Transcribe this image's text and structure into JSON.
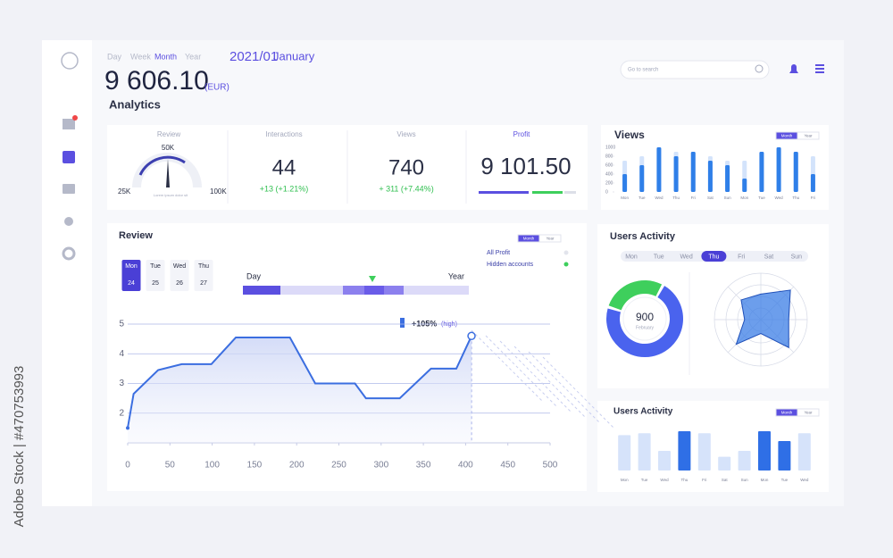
{
  "watermark": "Adobe Stock | #470753993",
  "header": {
    "periods": [
      "Day",
      "Week",
      "Month",
      "Year"
    ],
    "active_period": "Month",
    "date": "2021/01",
    "month": "January",
    "balance": "9 606.10",
    "currency": "(EUR)",
    "section": "Analytics",
    "search_placeholder": "Go to search"
  },
  "kpis": {
    "review": {
      "label": "Review",
      "gauge_labels": [
        "25K",
        "50K",
        "100K"
      ],
      "note": "Lorem ipsum dolor sit"
    },
    "interactions": {
      "label": "Interactions",
      "value": "44",
      "change": "+13 (+1.21%)"
    },
    "views": {
      "label": "Views",
      "value": "740",
      "change": "+ 311 (+7.44%)"
    },
    "profit": {
      "label": "Profit",
      "value": "9 101.50"
    }
  },
  "views_chart": {
    "type": "bar",
    "title": "Views",
    "toggle": [
      "Month",
      "Year"
    ],
    "categories": [
      "Mon",
      "Tue",
      "Wed",
      "Thu",
      "Fri",
      "Sat",
      "Sun",
      "Mon",
      "Tue",
      "Wed",
      "Thu",
      "Fri"
    ],
    "values": [
      400,
      600,
      1000,
      800,
      900,
      700,
      600,
      300,
      900,
      1000,
      900,
      400
    ],
    "background_values": [
      700,
      800,
      1000,
      900,
      900,
      800,
      700,
      700,
      900,
      1000,
      900,
      800
    ],
    "color": "#2f7fe8",
    "background_color": "#d3e3fb",
    "ylim": [
      0,
      1000
    ],
    "yticks": [
      0,
      200,
      400,
      600,
      800,
      1000
    ]
  },
  "review_chart": {
    "type": "line",
    "title": "Review",
    "toggle": [
      "Month",
      "Year"
    ],
    "dates": [
      {
        "day": "Mon",
        "num": "24"
      },
      {
        "day": "Tue",
        "num": "25"
      },
      {
        "day": "Wed",
        "num": "26"
      },
      {
        "day": "Thu",
        "num": "27"
      }
    ],
    "active_date": 0,
    "slider": {
      "start": "Day",
      "end": "Year"
    },
    "legend": [
      "All Profit",
      "Hidden accounts"
    ],
    "annotation": {
      "value": "+105%",
      "note": "(high)"
    },
    "x": [
      0,
      7,
      36,
      64,
      99,
      128,
      192,
      222,
      269,
      282,
      322,
      359,
      389,
      407
    ],
    "values": [
      1.5,
      2.65,
      3.45,
      3.65,
      3.65,
      4.55,
      4.55,
      3.0,
      3.0,
      2.5,
      2.5,
      3.5,
      3.5,
      4.6
    ],
    "color": "#3b6ee0",
    "xlim": [
      0,
      500
    ],
    "xticks": [
      0,
      50,
      100,
      150,
      200,
      250,
      300,
      350,
      400,
      450,
      500
    ],
    "ylim": [
      1,
      5
    ],
    "yticks": [
      2,
      3,
      4,
      5
    ],
    "grid": true
  },
  "users_activity": {
    "title": "Users Activity",
    "days": [
      "Mon",
      "Tue",
      "Wed",
      "Thu",
      "Fri",
      "Sat",
      "Sun"
    ],
    "active_day": "Thu",
    "donut": {
      "type": "pie",
      "center_value": "900",
      "center_label": "February",
      "values": [
        72,
        28
      ],
      "colors": [
        "#4a63ee",
        "#3ecf5c"
      ]
    },
    "radar": {
      "type": "radar",
      "values": [
        0.55,
        0.9,
        0.6,
        0.85,
        0.3,
        0.75,
        0.35,
        0.6
      ],
      "rlim": [
        0,
        1
      ],
      "color": "#3b7de6"
    }
  },
  "users_activity_bars": {
    "type": "bar",
    "title": "Users Activity",
    "toggle": [
      "Month",
      "Year"
    ],
    "categories": [
      "Mon",
      "Tue",
      "Wed",
      "Thu",
      "Fri",
      "Sat",
      "Sun",
      "Mon",
      "Tue",
      "Wed"
    ],
    "values": [
      0.9,
      0.95,
      0.5,
      1.0,
      0.95,
      0.35,
      0.5,
      1.0,
      0.75,
      0.95
    ],
    "colors": [
      "#d6e3fa",
      "#d6e3fa",
      "#d6e3fa",
      "#2f6fe6",
      "#d6e3fa",
      "#d6e3fa",
      "#d6e3fa",
      "#2f6fe6",
      "#2f6fe6",
      "#d6e3fa"
    ]
  }
}
